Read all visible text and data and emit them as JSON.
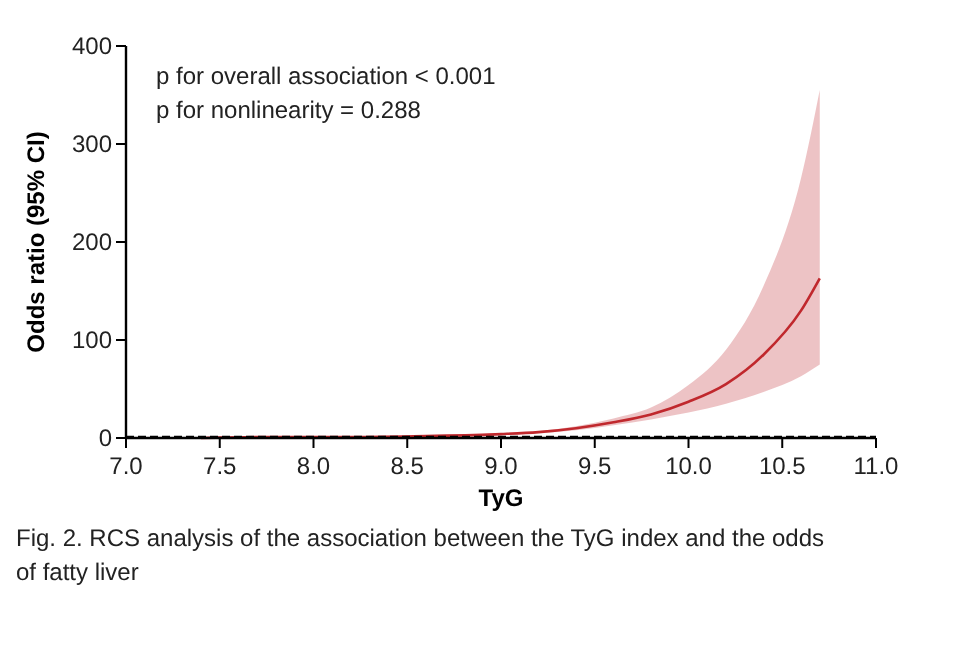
{
  "chart_data": {
    "type": "line",
    "xlabel": "TyG",
    "ylabel": "Odds ratio (95% CI)",
    "xlim": [
      7.0,
      11.0
    ],
    "xticks": [
      {
        "value": 7,
        "label": "7.0"
      },
      {
        "value": 7.5,
        "label": "7.5"
      },
      {
        "value": 8,
        "label": "8.0"
      },
      {
        "value": 8.5,
        "label": "8.5"
      },
      {
        "value": 9,
        "label": "9.0"
      },
      {
        "value": 9.5,
        "label": "9.5"
      },
      {
        "value": 10,
        "label": "10.0"
      },
      {
        "value": 10.5,
        "label": "10.5"
      },
      {
        "value": 11,
        "label": "11.0"
      }
    ],
    "ylim": [
      0,
      400
    ],
    "yticks": [
      0,
      100,
      200,
      300,
      400
    ],
    "grid": false,
    "marker": "none",
    "line_style": "solid",
    "x": [
      7.4,
      7.8,
      8.2,
      8.6,
      9.0,
      9.2,
      9.4,
      9.6,
      9.8,
      10.0,
      10.2,
      10.4,
      10.6,
      10.7
    ],
    "series": [
      {
        "color": "#c0282d",
        "values": [
          0,
          1,
          1,
          2,
          4,
          6,
          10,
          16,
          24,
          37,
          55,
          85,
          130,
          163
        ],
        "lower": [
          0,
          0,
          0,
          1,
          3,
          5,
          8,
          13,
          19,
          26,
          35,
          47,
          63,
          75
        ],
        "upper": [
          1,
          1,
          2,
          2,
          5,
          7,
          12,
          20,
          31,
          54,
          90,
          155,
          265,
          355
        ]
      }
    ],
    "ref_lines": [
      {
        "axis": "y",
        "value": 1,
        "line_style": "dashed",
        "color": "#000000"
      }
    ],
    "annotations": [
      "p for overall association < 0.001",
      "p for nonlinearity = 0.288",
      "Fig. 2. RCS analysis of the association between the TyG index and the odds of fatty liver"
    ]
  }
}
